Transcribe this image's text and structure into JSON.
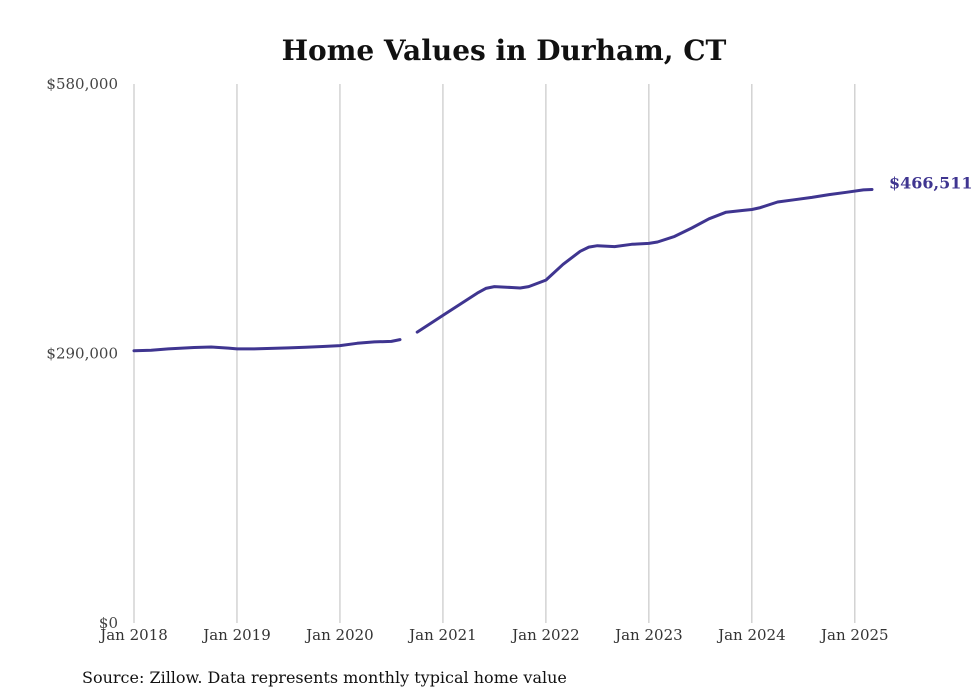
{
  "source_note": "Source: Zillow. Data represents monthly typical home value",
  "colors": {
    "series": "#3f3590",
    "grid": "#bdbdbd"
  },
  "chart_data": {
    "type": "line",
    "title": "Home Values in Durham, CT",
    "xlabel": "",
    "ylabel": "",
    "ylim": [
      0,
      580000
    ],
    "xlim": [
      "2018-01",
      "2025-03"
    ],
    "y_ticks": [
      {
        "value": 0,
        "label": "$0"
      },
      {
        "value": 290000,
        "label": "$290,000"
      },
      {
        "value": 580000,
        "label": "$580,000"
      }
    ],
    "x_ticks": [
      {
        "value": "2018-01",
        "label": "Jan 2018"
      },
      {
        "value": "2019-01",
        "label": "Jan 2019"
      },
      {
        "value": "2020-01",
        "label": "Jan 2020"
      },
      {
        "value": "2021-01",
        "label": "Jan 2021"
      },
      {
        "value": "2022-01",
        "label": "Jan 2022"
      },
      {
        "value": "2023-01",
        "label": "Jan 2023"
      },
      {
        "value": "2024-01",
        "label": "Jan 2024"
      },
      {
        "value": "2025-01",
        "label": "Jan 2025"
      }
    ],
    "grid": "vertical",
    "end_label": "$466,511",
    "series": [
      {
        "color": "#3f3590",
        "points": [
          [
            "2018-01",
            293000
          ],
          [
            "2018-03",
            293500
          ],
          [
            "2018-05",
            295000
          ],
          [
            "2018-08",
            296500
          ],
          [
            "2018-10",
            297000
          ],
          [
            "2018-12",
            295800
          ],
          [
            "2019-01",
            295000
          ],
          [
            "2019-03",
            295000
          ],
          [
            "2019-05",
            295500
          ],
          [
            "2019-07",
            296000
          ],
          [
            "2019-09",
            296800
          ],
          [
            "2019-11",
            297500
          ],
          [
            "2020-01",
            298500
          ],
          [
            "2020-03",
            301000
          ],
          [
            "2020-05",
            302500
          ],
          [
            "2020-07",
            303000
          ],
          [
            "2020-08",
            305000
          ],
          null,
          [
            "2020-10",
            313000
          ],
          [
            "2020-12",
            325000
          ],
          [
            "2021-01",
            331000
          ],
          [
            "2021-03",
            343000
          ],
          [
            "2021-05",
            355000
          ],
          [
            "2021-06",
            360000
          ],
          [
            "2021-07",
            362000
          ],
          [
            "2021-09",
            361000
          ],
          [
            "2021-10",
            360500
          ],
          [
            "2021-11",
            362000
          ],
          [
            "2022-01",
            369000
          ],
          [
            "2022-03",
            386000
          ],
          [
            "2022-05",
            400000
          ],
          [
            "2022-06",
            404500
          ],
          [
            "2022-07",
            406000
          ],
          [
            "2022-09",
            405000
          ],
          [
            "2022-11",
            407500
          ],
          [
            "2023-01",
            408500
          ],
          [
            "2023-02",
            410000
          ],
          [
            "2023-04",
            416000
          ],
          [
            "2023-06",
            425000
          ],
          [
            "2023-08",
            435000
          ],
          [
            "2023-10",
            442000
          ],
          [
            "2023-12",
            444000
          ],
          [
            "2024-01",
            445000
          ],
          [
            "2024-02",
            447000
          ],
          [
            "2024-04",
            453000
          ],
          [
            "2024-06",
            455500
          ],
          [
            "2024-08",
            458000
          ],
          [
            "2024-10",
            461000
          ],
          [
            "2024-12",
            463500
          ],
          [
            "2025-02",
            466000
          ],
          [
            "2025-03",
            466511
          ]
        ]
      }
    ]
  }
}
